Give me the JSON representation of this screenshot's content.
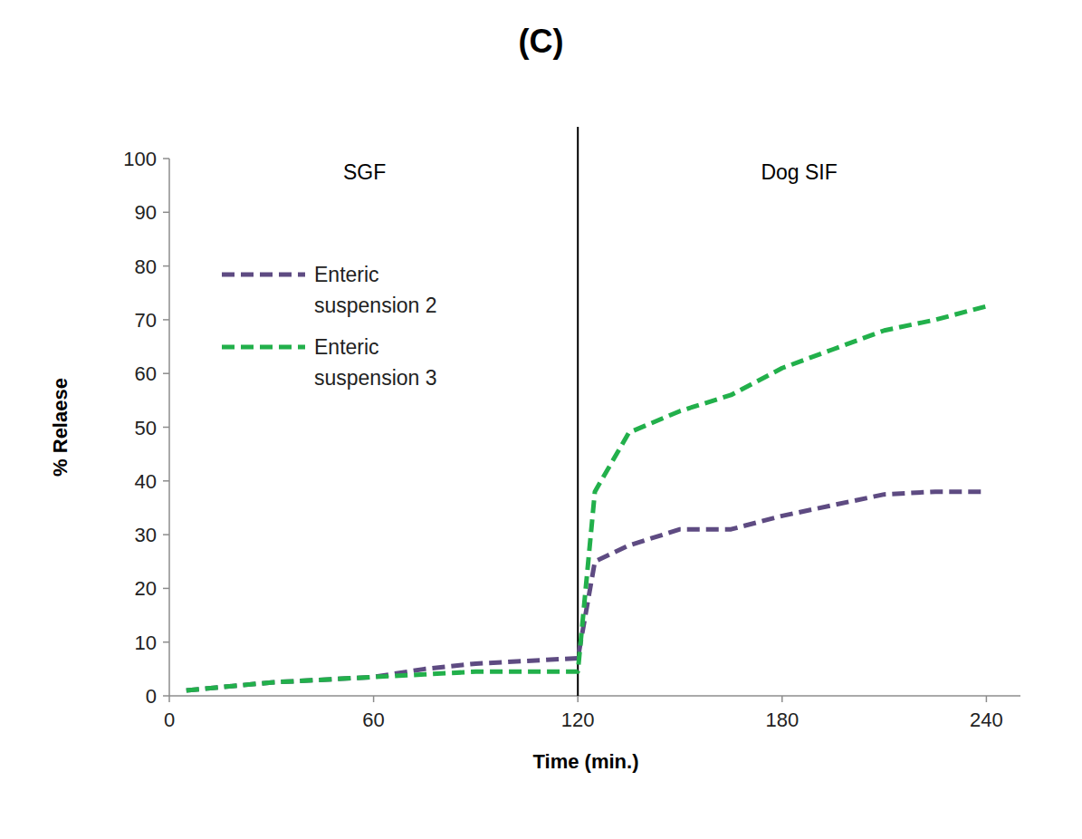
{
  "chart_data": {
    "type": "line",
    "title": "(C)",
    "x_label": "Time (min.)",
    "y_label": "% Relaese",
    "x": [
      5,
      30,
      60,
      75,
      90,
      105,
      120,
      125,
      135,
      150,
      165,
      180,
      195,
      210,
      225,
      240
    ],
    "series": [
      {
        "name": "Enteric suspension 2",
        "color": "#5e4b82",
        "line_style": "dashed",
        "values": [
          1,
          2.5,
          3.5,
          5,
          6,
          6.5,
          7,
          25,
          28,
          31,
          31,
          33.5,
          35.5,
          37.5,
          38,
          38
        ]
      },
      {
        "name": "Enteric suspension 3",
        "color": "#22b04b",
        "line_style": "dashed",
        "values": [
          1,
          2.5,
          3.5,
          4,
          4.5,
          4.5,
          4.5,
          38,
          49,
          53,
          56,
          61,
          64.5,
          68,
          70,
          72.5
        ]
      }
    ],
    "xlim": [
      0,
      250
    ],
    "xticks": [
      0,
      60,
      120,
      180,
      240
    ],
    "ylim": [
      0,
      100
    ],
    "yticks": [
      0,
      10,
      20,
      30,
      40,
      50,
      60,
      70,
      80,
      90,
      100
    ],
    "phase_boundary": 120,
    "phase_labels": [
      "SGF",
      "Dog SIF"
    ],
    "legend": "upper left",
    "grid": false
  }
}
